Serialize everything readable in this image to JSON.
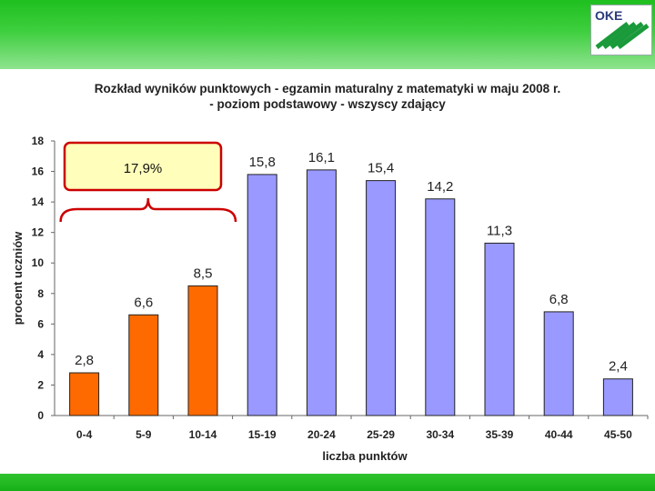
{
  "logo": {
    "text": "OKE"
  },
  "chart_data": {
    "type": "bar",
    "title_line1": "Rozkład wyników punktowych - egzamin maturalny z matematyki w maju 2008 r.",
    "title_line2": "- poziom podstawowy - wszyscy zdający",
    "xlabel": "liczba punktów",
    "ylabel": "procent uczniów",
    "ylim": [
      0,
      18
    ],
    "yticks": [
      "0",
      "2",
      "4",
      "6",
      "8",
      "10",
      "12",
      "14",
      "16",
      "18"
    ],
    "grid": false,
    "categories": [
      "0-4",
      "5-9",
      "10-14",
      "15-19",
      "20-24",
      "25-29",
      "30-34",
      "35-39",
      "40-44",
      "45-50"
    ],
    "values": [
      2.8,
      6.6,
      8.5,
      15.8,
      16.1,
      15.4,
      14.2,
      11.3,
      6.8,
      2.4
    ],
    "value_labels": [
      "2,8",
      "6,6",
      "8,5",
      "15,8",
      "16,1",
      "15,4",
      "14,2",
      "11,3",
      "6,8",
      "2,4"
    ],
    "colors": [
      "#ff6a00",
      "#ff6a00",
      "#ff6a00",
      "#9999ff",
      "#9999ff",
      "#9999ff",
      "#9999ff",
      "#9999ff",
      "#9999ff",
      "#9999ff"
    ],
    "annotation": {
      "text": "17,9%",
      "fill": "#ffffbb",
      "border": "#cc0000"
    }
  }
}
